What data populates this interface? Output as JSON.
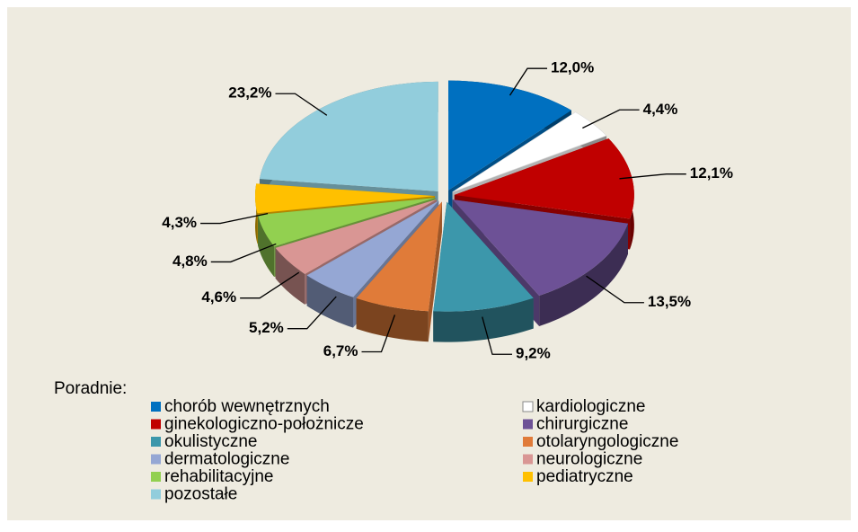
{
  "chart_data": {
    "type": "pie3d",
    "legend_title": "Poradnie:",
    "categories": [
      "chorób wewnętrznych",
      "kardiologiczne",
      "ginekologiczno-położnicze",
      "chirurgiczne",
      "okulistyczne",
      "otolaryngologiczne",
      "dermatologiczne",
      "neurologiczne",
      "rehabilitacyjne",
      "pediatryczne",
      "pozostałe"
    ],
    "values": [
      12.0,
      4.4,
      12.1,
      13.5,
      9.2,
      6.7,
      5.2,
      4.6,
      4.8,
      4.3,
      23.2
    ],
    "value_labels": [
      "12,0%",
      "4,4%",
      "12,1%",
      "13,5%",
      "9,2%",
      "6,7%",
      "5,2%",
      "4,6%",
      "4,8%",
      "4,3%",
      "23,2%"
    ],
    "colors": [
      "#0070c0",
      "#ffffff",
      "#c00000",
      "#6d5196",
      "#3c97ab",
      "#e07b39",
      "#95a7d4",
      "#d99694",
      "#92d050",
      "#ffc000",
      "#92cddc"
    ],
    "legend": "bottom"
  }
}
